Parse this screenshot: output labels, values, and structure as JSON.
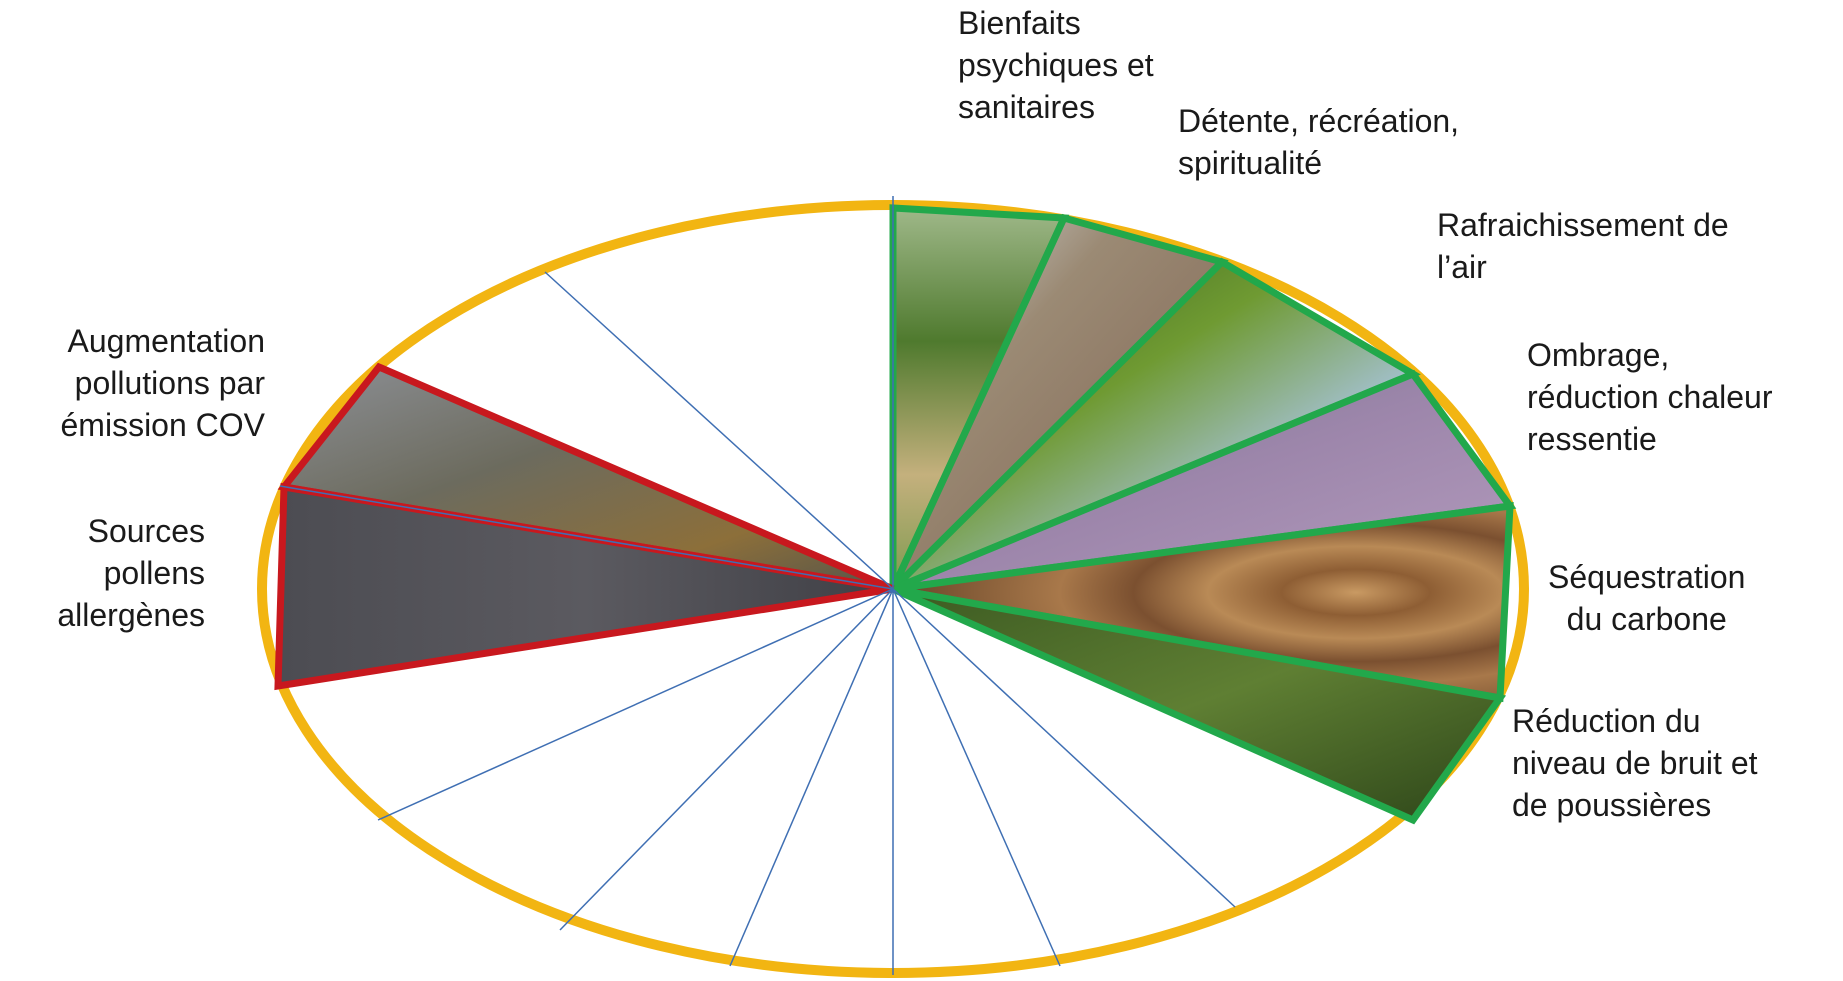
{
  "colors": {
    "ellipse": "#F2B512",
    "spoke": "#3F6FB3",
    "benefit": "#22A84B",
    "harm": "#C8181E"
  },
  "labels": {
    "bienfaits": "Bienfaits\npsychiques et\nsanitaires",
    "detente": "Détente, récréation,\nspiritualité",
    "rafraichissement": "Rafraichissement de\nl’air",
    "ombrage": "Ombrage,\nréduction chaleur\nressentie",
    "sequestration": "Séquestration\ndu carbone",
    "reduction_bruit": "Réduction du\nniveau de bruit et\nde poussières",
    "augmentation_pollutions": "Augmentation\npollutions par\némission COV",
    "sources_pollens": "Sources\npollens\nallergènes"
  },
  "wedges": [
    {
      "id": "bienfaits",
      "type": "benefit",
      "scene": "garden-path"
    },
    {
      "id": "detente",
      "type": "benefit",
      "scene": "man-hugging-tree"
    },
    {
      "id": "rafraichissement",
      "type": "benefit",
      "scene": "green-leaves-sky"
    },
    {
      "id": "ombrage",
      "type": "benefit",
      "scene": "tree-shade-pavement"
    },
    {
      "id": "sequestration",
      "type": "benefit",
      "scene": "tree-trunk-rings"
    },
    {
      "id": "reduction_bruit",
      "type": "benefit",
      "scene": "forest-undergrowth"
    },
    {
      "id": "augmentation_pollutions",
      "type": "harm",
      "scene": "city-rooftops-autumn"
    },
    {
      "id": "sources_pollens",
      "type": "harm",
      "scene": "catkin-pollen"
    }
  ]
}
